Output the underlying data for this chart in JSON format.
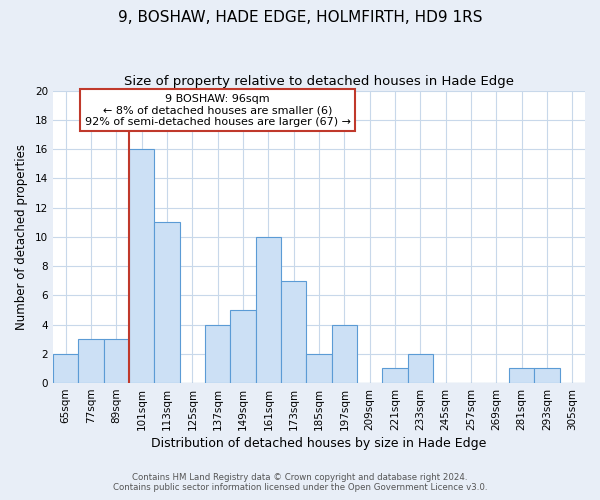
{
  "title": "9, BOSHAW, HADE EDGE, HOLMFIRTH, HD9 1RS",
  "subtitle": "Size of property relative to detached houses in Hade Edge",
  "xlabel": "Distribution of detached houses by size in Hade Edge",
  "ylabel": "Number of detached properties",
  "bins": [
    "65sqm",
    "77sqm",
    "89sqm",
    "101sqm",
    "113sqm",
    "125sqm",
    "137sqm",
    "149sqm",
    "161sqm",
    "173sqm",
    "185sqm",
    "197sqm",
    "209sqm",
    "221sqm",
    "233sqm",
    "245sqm",
    "257sqm",
    "269sqm",
    "281sqm",
    "293sqm",
    "305sqm"
  ],
  "counts": [
    2,
    3,
    3,
    16,
    11,
    0,
    4,
    5,
    10,
    7,
    2,
    4,
    0,
    1,
    2,
    0,
    0,
    0,
    1,
    1,
    0
  ],
  "bar_color": "#cce0f5",
  "bar_edge_color": "#5b9bd5",
  "vline_color": "#c0392b",
  "annotation_box_color": "#ffffff",
  "annotation_box_edge_color": "#c0392b",
  "annotation_line1": "9 BOSHAW: 96sqm",
  "annotation_line2": "← 8% of detached houses are smaller (6)",
  "annotation_line3": "92% of semi-detached houses are larger (67) →",
  "ylim": [
    0,
    20
  ],
  "yticks": [
    0,
    2,
    4,
    6,
    8,
    10,
    12,
    14,
    16,
    18,
    20
  ],
  "footnote1": "Contains HM Land Registry data © Crown copyright and database right 2024.",
  "footnote2": "Contains public sector information licensed under the Open Government Licence v3.0.",
  "bg_color": "#e8eef7",
  "plot_bg_color": "#ffffff",
  "grid_color": "#c8d8ea",
  "title_fontsize": 11,
  "subtitle_fontsize": 9.5,
  "xlabel_fontsize": 9,
  "ylabel_fontsize": 8.5,
  "tick_fontsize": 7.5,
  "annot_fontsize": 8
}
